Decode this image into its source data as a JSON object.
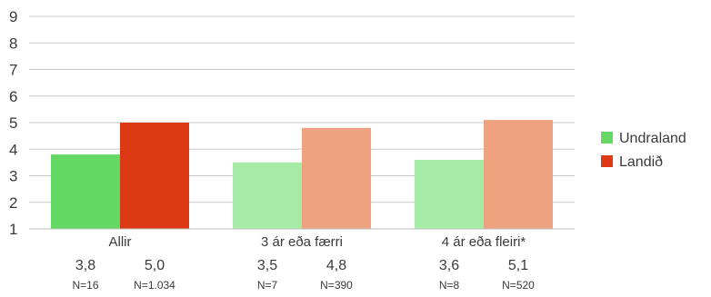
{
  "chart_data": {
    "type": "bar",
    "ylim": [
      1,
      9
    ],
    "y_ticks": [
      1,
      2,
      3,
      4,
      5,
      6,
      7,
      8,
      9
    ],
    "grid": true,
    "legend_placement": "right",
    "categories": [
      "Allir",
      "3 ár eða færri",
      "4 ár eða fleiri*"
    ],
    "series": [
      {
        "name": "Undraland",
        "values": [
          3.8,
          3.5,
          3.6
        ],
        "value_labels": [
          "3,8",
          "3,5",
          "3,6"
        ],
        "n_labels": [
          "N=16",
          "N=7",
          "N=8"
        ],
        "colors": [
          "#63d964",
          "#a5eaa5",
          "#a5eaa5"
        ]
      },
      {
        "name": "Landið",
        "values": [
          5.0,
          4.8,
          5.1
        ],
        "value_labels": [
          "5,0",
          "4,8",
          "5,1"
        ],
        "n_labels": [
          "N=1.034",
          "N=390",
          "N=520"
        ],
        "colors": [
          "#dd3914",
          "#eea27f",
          "#eea27f"
        ]
      }
    ],
    "legend_colors": [
      "#63d964",
      "#dd3914"
    ]
  }
}
